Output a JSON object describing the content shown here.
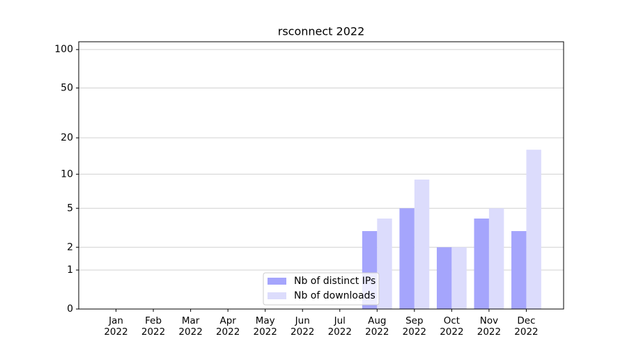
{
  "chart_data": {
    "type": "bar",
    "title": "rsconnect 2022",
    "categories": [
      "Jan\n2022",
      "Feb\n2022",
      "Mar\n2022",
      "Apr\n2022",
      "May\n2022",
      "Jun\n2022",
      "Jul\n2022",
      "Aug\n2022",
      "Sep\n2022",
      "Oct\n2022",
      "Nov\n2022",
      "Dec\n2022"
    ],
    "series": [
      {
        "name": "Nb of distinct IPs",
        "color": "#a5a5fc",
        "values": [
          0,
          0,
          0,
          0,
          0,
          0,
          0,
          3,
          5,
          2,
          4,
          3
        ]
      },
      {
        "name": "Nb of downloads",
        "color": "#dcdcfc",
        "values": [
          0,
          0,
          0,
          0,
          0,
          0,
          0,
          4,
          9,
          2,
          5,
          16
        ]
      }
    ],
    "yscale": "log1p",
    "ylim": [
      0,
      115
    ],
    "yticks": [
      0,
      1,
      2,
      5,
      10,
      20,
      50,
      100
    ],
    "grid": true,
    "legend": "lower center"
  }
}
